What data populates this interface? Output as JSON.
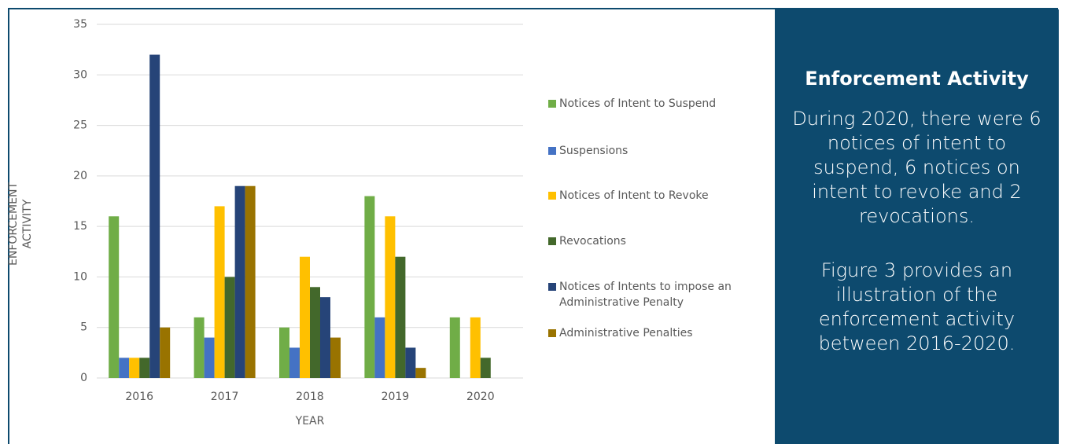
{
  "chart_data": {
    "type": "bar",
    "categories": [
      "2016",
      "2017",
      "2018",
      "2019",
      "2020"
    ],
    "series": [
      {
        "name": "Notices of Intent to Suspend",
        "color": "#70ad47",
        "values": [
          16,
          6,
          5,
          18,
          6
        ]
      },
      {
        "name": "Suspensions",
        "color": "#4472c4",
        "values": [
          2,
          4,
          3,
          6,
          0
        ]
      },
      {
        "name": "Notices of Intent to Revoke",
        "color": "#ffc000",
        "values": [
          2,
          17,
          12,
          16,
          6
        ]
      },
      {
        "name": "Revocations",
        "color": "#43682b",
        "values": [
          2,
          10,
          9,
          12,
          2
        ]
      },
      {
        "name": "Notices of Intents to impose an Administrative Penalty",
        "color": "#264478",
        "values": [
          32,
          19,
          8,
          3,
          0
        ]
      },
      {
        "name": "Administrative Penalties",
        "color": "#997300",
        "values": [
          5,
          19,
          4,
          1,
          0
        ]
      }
    ],
    "xlabel": "YEAR",
    "ylabel": "ENFORCEMENT ACTIVITY",
    "ylim": [
      0,
      35
    ],
    "yticks": [
      0,
      5,
      10,
      15,
      20,
      25,
      30,
      35
    ],
    "grid": true,
    "legend": "right"
  },
  "panel": {
    "title": "Enforcement Activity",
    "paragraphs": [
      "During 2020, there were 6 notices of intent to suspend, 6 notices on intent to revoke and 2 revocations.",
      "Figure 3 provides an illustration of the enforcement activity between 2016-2020."
    ]
  }
}
